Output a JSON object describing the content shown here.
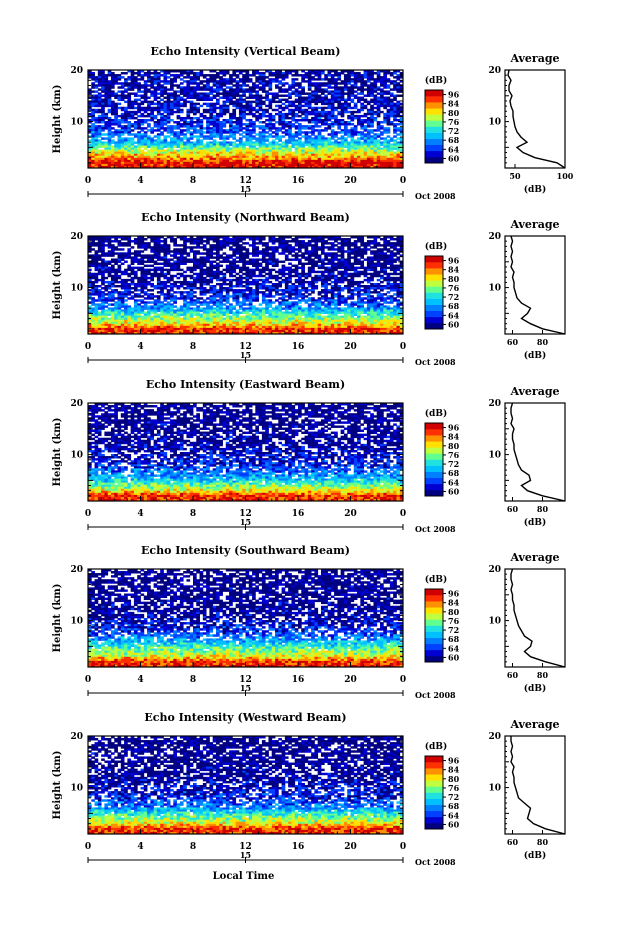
{
  "figure": {
    "x_axis_title": "Local Time",
    "date_label": "Oct 2008",
    "day_label": "15",
    "colorbar_unit": "(dB)",
    "colorbar_ticks": [
      "96",
      "84",
      "80",
      "76",
      "72",
      "68",
      "64",
      "60"
    ],
    "avg_title": "Average",
    "avg_unit": "(dB)",
    "y_axis_label": "Height (km)",
    "height_ticks": [
      "20",
      "10"
    ],
    "time_ticks": [
      "0",
      "4",
      "8",
      "12",
      "16",
      "20",
      "0"
    ],
    "colors": [
      "#000080",
      "#0000d0",
      "#0040ff",
      "#0080ff",
      "#00c0ff",
      "#20e0e0",
      "#60ff90",
      "#c0ff40",
      "#ffe000",
      "#ff9000",
      "#ff3000",
      "#d00000"
    ]
  },
  "chart_data": [
    {
      "type": "heatmap",
      "title": "Echo Intensity (Vertical Beam)",
      "ylabel": "Height (km)",
      "xlabel": "Local Time",
      "x_range_hours": [
        0,
        24
      ],
      "y_range_km": [
        1,
        20
      ],
      "color_range_db": [
        60,
        98
      ],
      "profile_layers": [
        {
          "height_km": 2.0,
          "intensity_db": 96
        },
        {
          "height_km": 3.0,
          "intensity_db": 90
        },
        {
          "height_km": 5.0,
          "intensity_db": 80
        },
        {
          "height_km": 6.0,
          "intensity_db": 74
        },
        {
          "height_km": 8.0,
          "intensity_db": 68
        },
        {
          "height_km": 12.0,
          "intensity_db": 64
        },
        {
          "height_km": 20.0,
          "intensity_db": 62
        }
      ],
      "average_profile": {
        "xlabel": "(dB)",
        "x_ticks": [
          "50",
          "100"
        ],
        "xlim": [
          40,
          100
        ],
        "heights_km": [
          1,
          2,
          3,
          4,
          5,
          6,
          7,
          8,
          9,
          10,
          11,
          12,
          13,
          14,
          15,
          16,
          17,
          18,
          19,
          20
        ],
        "values_db": [
          100,
          92,
          70,
          58,
          52,
          62,
          56,
          52,
          50,
          49,
          48,
          48,
          46,
          45,
          47,
          44,
          44,
          46,
          43,
          44
        ]
      }
    },
    {
      "type": "heatmap",
      "title": "Echo Intensity (Northward Beam)",
      "ylabel": "Height (km)",
      "xlabel": "Local Time",
      "x_range_hours": [
        0,
        24
      ],
      "y_range_km": [
        1,
        20
      ],
      "color_range_db": [
        60,
        98
      ],
      "profile_layers": [
        {
          "height_km": 2.0,
          "intensity_db": 94
        },
        {
          "height_km": 3.0,
          "intensity_db": 86
        },
        {
          "height_km": 5.0,
          "intensity_db": 78
        },
        {
          "height_km": 6.0,
          "intensity_db": 72
        },
        {
          "height_km": 8.0,
          "intensity_db": 66
        },
        {
          "height_km": 12.0,
          "intensity_db": 62
        },
        {
          "height_km": 20.0,
          "intensity_db": 61
        }
      ],
      "average_profile": {
        "xlabel": "(dB)",
        "x_ticks": [
          "60",
          "80"
        ],
        "xlim": [
          55,
          95
        ],
        "heights_km": [
          1,
          2,
          3,
          4,
          5,
          6,
          7,
          8,
          9,
          10,
          11,
          12,
          13,
          14,
          15,
          16,
          17,
          18,
          19,
          20
        ],
        "values_db": [
          95,
          80,
          72,
          66,
          70,
          72,
          66,
          63,
          62,
          61,
          61,
          60,
          61,
          59,
          60,
          59,
          60,
          59,
          60,
          59
        ]
      }
    },
    {
      "type": "heatmap",
      "title": "Echo Intensity (Eastward Beam)",
      "ylabel": "Height (km)",
      "xlabel": "Local Time",
      "x_range_hours": [
        0,
        24
      ],
      "y_range_km": [
        1,
        20
      ],
      "color_range_db": [
        60,
        98
      ],
      "profile_layers": [
        {
          "height_km": 2.0,
          "intensity_db": 94
        },
        {
          "height_km": 3.0,
          "intensity_db": 86
        },
        {
          "height_km": 5.0,
          "intensity_db": 76
        },
        {
          "height_km": 6.0,
          "intensity_db": 72
        },
        {
          "height_km": 8.0,
          "intensity_db": 66
        },
        {
          "height_km": 12.0,
          "intensity_db": 62
        },
        {
          "height_km": 20.0,
          "intensity_db": 61
        }
      ],
      "average_profile": {
        "xlabel": "(dB)",
        "x_ticks": [
          "60",
          "80"
        ],
        "xlim": [
          55,
          95
        ],
        "heights_km": [
          1,
          2,
          3,
          4,
          5,
          6,
          7,
          8,
          9,
          10,
          11,
          12,
          13,
          14,
          15,
          16,
          17,
          18,
          19,
          20
        ],
        "values_db": [
          95,
          80,
          70,
          66,
          72,
          71,
          66,
          64,
          63,
          62,
          61,
          61,
          60,
          60,
          61,
          59,
          60,
          59,
          59,
          60
        ]
      }
    },
    {
      "type": "heatmap",
      "title": "Echo Intensity (Southward Beam)",
      "ylabel": "Height (km)",
      "xlabel": "Local Time",
      "x_range_hours": [
        0,
        24
      ],
      "y_range_km": [
        1,
        20
      ],
      "color_range_db": [
        60,
        98
      ],
      "profile_layers": [
        {
          "height_km": 2.0,
          "intensity_db": 94
        },
        {
          "height_km": 3.0,
          "intensity_db": 86
        },
        {
          "height_km": 5.0,
          "intensity_db": 78
        },
        {
          "height_km": 6.0,
          "intensity_db": 74
        },
        {
          "height_km": 8.0,
          "intensity_db": 66
        },
        {
          "height_km": 12.0,
          "intensity_db": 62
        },
        {
          "height_km": 20.0,
          "intensity_db": 61
        }
      ],
      "average_profile": {
        "xlabel": "(dB)",
        "x_ticks": [
          "60",
          "80"
        ],
        "xlim": [
          55,
          95
        ],
        "heights_km": [
          1,
          2,
          3,
          4,
          5,
          6,
          7,
          8,
          9,
          10,
          11,
          12,
          13,
          14,
          15,
          16,
          17,
          18,
          19,
          20
        ],
        "values_db": [
          95,
          82,
          72,
          68,
          72,
          73,
          68,
          66,
          64,
          63,
          62,
          61,
          61,
          60,
          60,
          59,
          60,
          59,
          59,
          60
        ]
      }
    },
    {
      "type": "heatmap",
      "title": "Echo Intensity (Westward Beam)",
      "ylabel": "Height (km)",
      "xlabel": "Local Time",
      "x_range_hours": [
        0,
        24
      ],
      "y_range_km": [
        1,
        20
      ],
      "color_range_db": [
        60,
        98
      ],
      "profile_layers": [
        {
          "height_km": 2.0,
          "intensity_db": 94
        },
        {
          "height_km": 3.0,
          "intensity_db": 86
        },
        {
          "height_km": 5.0,
          "intensity_db": 78
        },
        {
          "height_km": 6.0,
          "intensity_db": 72
        },
        {
          "height_km": 8.0,
          "intensity_db": 66
        },
        {
          "height_km": 12.0,
          "intensity_db": 62
        },
        {
          "height_km": 20.0,
          "intensity_db": 61
        }
      ],
      "average_profile": {
        "xlabel": "(dB)",
        "x_ticks": [
          "60",
          "80"
        ],
        "xlim": [
          55,
          95
        ],
        "heights_km": [
          1,
          2,
          3,
          4,
          5,
          6,
          7,
          8,
          9,
          10,
          11,
          12,
          13,
          14,
          15,
          16,
          17,
          18,
          19,
          20
        ],
        "values_db": [
          95,
          82,
          74,
          70,
          71,
          72,
          68,
          64,
          63,
          62,
          61,
          61,
          60,
          61,
          59,
          60,
          59,
          60,
          59,
          59
        ]
      }
    }
  ]
}
